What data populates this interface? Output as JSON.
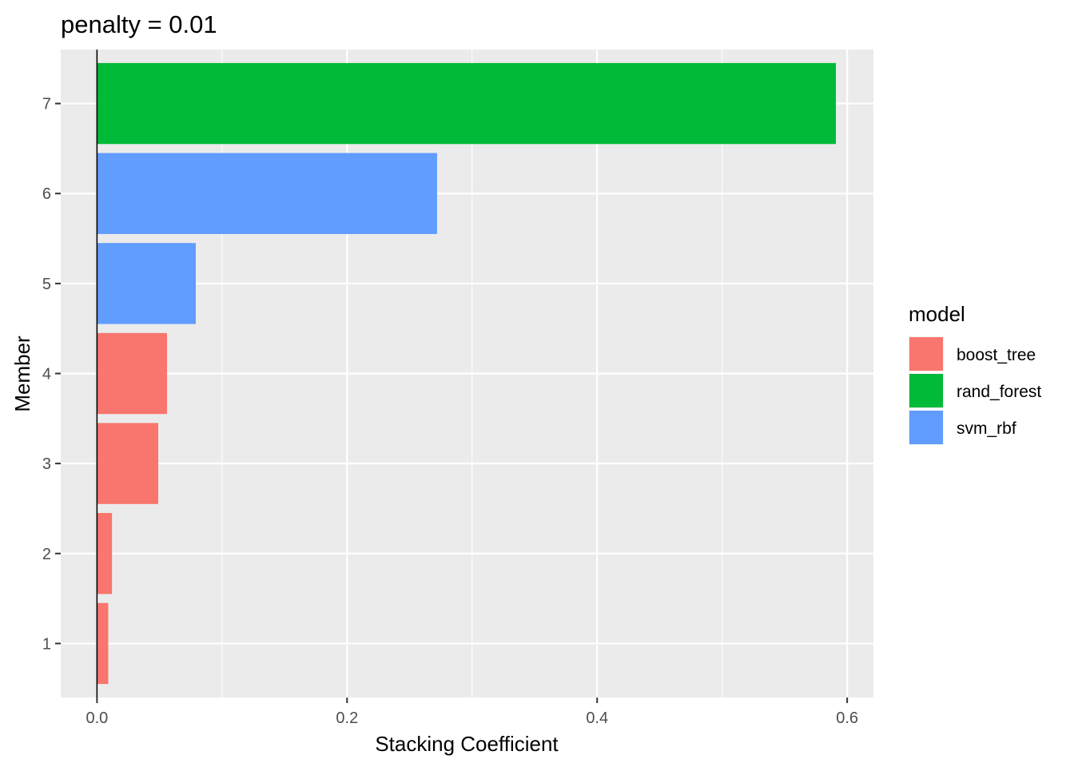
{
  "chart_data": {
    "type": "bar",
    "orientation": "horizontal",
    "title": "penalty = 0.01",
    "xlabel": "Stacking Coefficient",
    "ylabel": "Member",
    "categories": [
      "1",
      "2",
      "3",
      "4",
      "5",
      "6",
      "7"
    ],
    "values": [
      0.009,
      0.012,
      0.049,
      0.056,
      0.079,
      0.272,
      0.591
    ],
    "groups": [
      "boost_tree",
      "boost_tree",
      "boost_tree",
      "boost_tree",
      "svm_rbf",
      "svm_rbf",
      "rand_forest"
    ],
    "xlim": [
      -0.029,
      0.621
    ],
    "xticks": [
      0.0,
      0.2,
      0.4,
      0.6
    ],
    "xtick_labels": [
      "0.0",
      "0.2",
      "0.4",
      "0.6"
    ],
    "vline_at": 0,
    "grid": true,
    "legend": {
      "title": "model",
      "placement": "right",
      "entries": [
        {
          "name": "boost_tree",
          "color": "#F8766D"
        },
        {
          "name": "rand_forest",
          "color": "#00BA38"
        },
        {
          "name": "svm_rbf",
          "color": "#619CFF"
        }
      ]
    },
    "colors": {
      "panel_background": "#EBEBEB",
      "grid_line": "#FFFFFF",
      "axis_text": "#4D4D4D",
      "tick": "#333333",
      "text": "#000000"
    }
  }
}
